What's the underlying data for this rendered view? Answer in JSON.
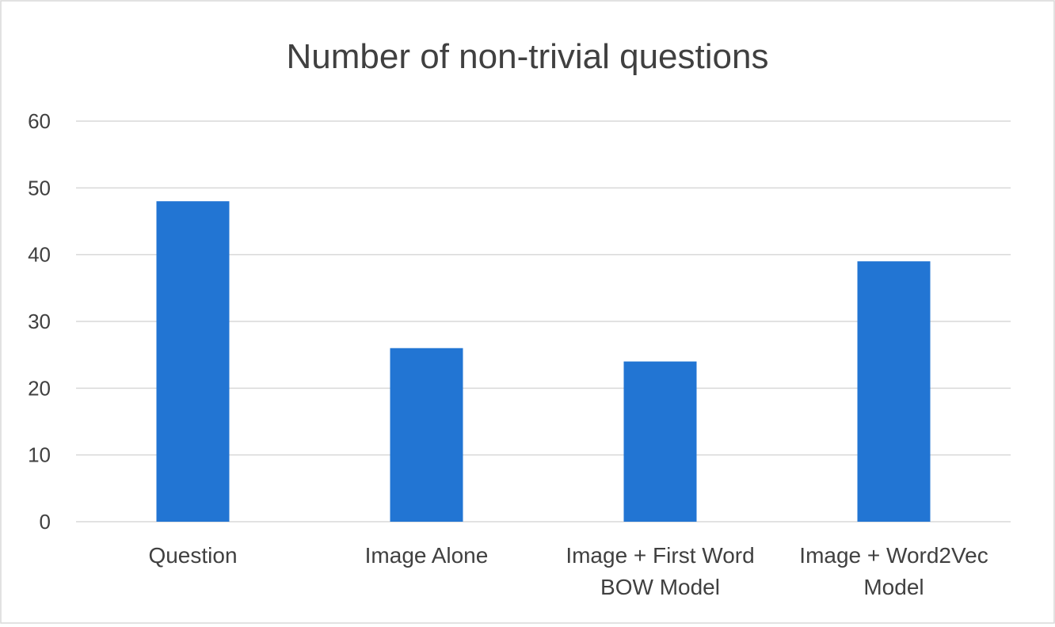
{
  "chart_data": {
    "type": "bar",
    "title": "Number of non-trivial questions",
    "categories": [
      [
        "Question"
      ],
      [
        "Image Alone"
      ],
      [
        "Image + First Word",
        "BOW Model"
      ],
      [
        "Image + Word2Vec",
        "Model"
      ]
    ],
    "values": [
      48,
      26,
      24,
      39
    ],
    "xlabel": "",
    "ylabel": "",
    "ylim": [
      0,
      60
    ],
    "yticks": [
      0,
      10,
      20,
      30,
      40,
      50,
      60
    ],
    "grid": true,
    "legend": "none",
    "bar_color": "#2275d3",
    "grid_color": "#d9d9d9",
    "axis_color": "#d9d9d9",
    "text_color": "#404040"
  }
}
